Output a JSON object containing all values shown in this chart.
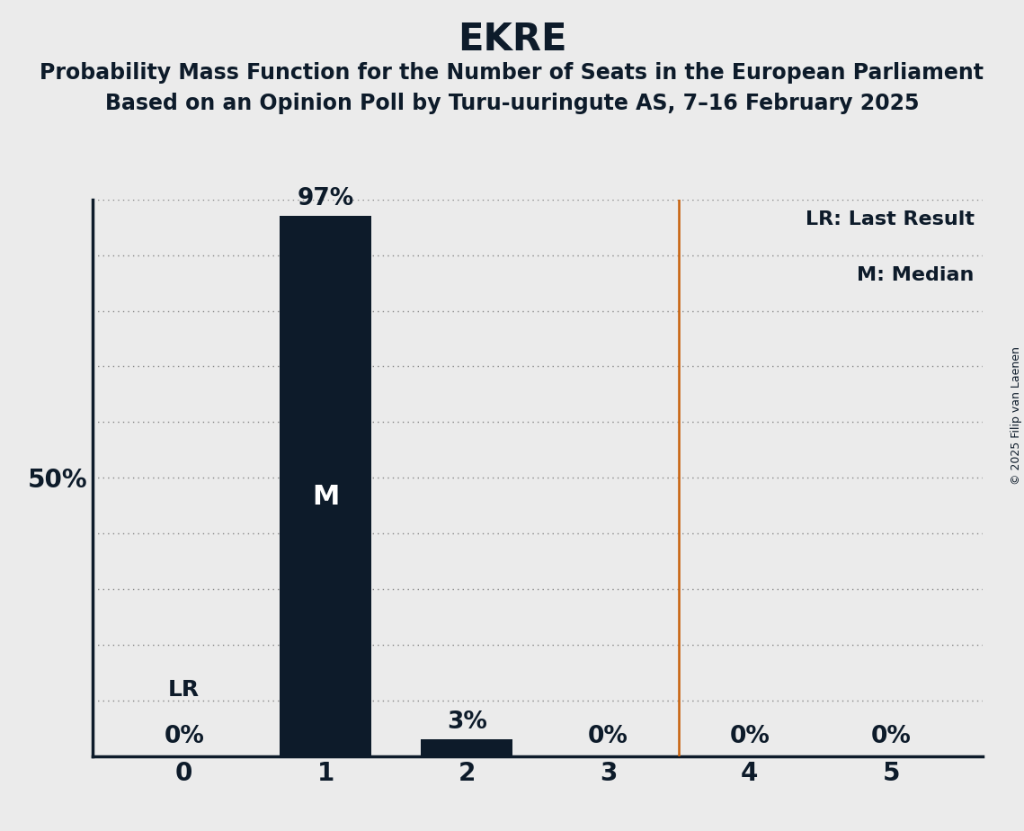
{
  "title": "EKRE",
  "subtitle1": "Probability Mass Function for the Number of Seats in the European Parliament",
  "subtitle2": "Based on an Opinion Poll by Turu-uuringute AS, 7–16 February 2025",
  "copyright": "© 2025 Filip van Laenen",
  "legend_lr": "LR: Last Result",
  "legend_m": "M: Median",
  "x_values": [
    0,
    1,
    2,
    3,
    4,
    5
  ],
  "y_values": [
    0,
    97,
    3,
    0,
    0,
    0
  ],
  "bar_color": "#0d1b2a",
  "median": 1,
  "last_result": 0,
  "vline_x": 3.5,
  "vline_color": "#c8600a",
  "background_color": "#ebebeb",
  "ylim": [
    0,
    100
  ],
  "ytick_50": 50,
  "grid_color": "#888888",
  "title_fontsize": 30,
  "subtitle_fontsize": 17,
  "bar_label_fontsize": 19,
  "axis_tick_fontsize": 20,
  "median_label_fontsize": 22,
  "lr_label_fontsize": 18,
  "legend_fontsize": 16,
  "copyright_fontsize": 9,
  "bar_width": 0.65
}
